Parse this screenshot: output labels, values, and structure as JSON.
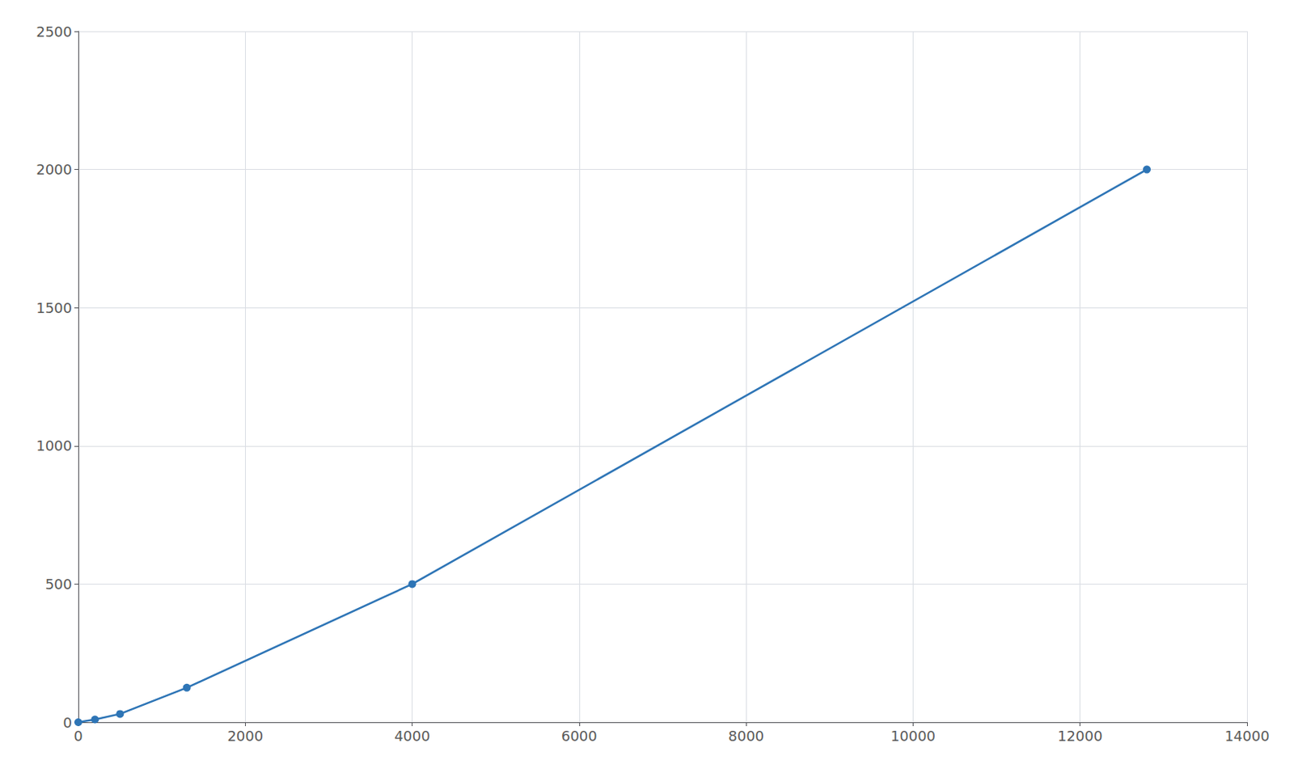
{
  "chart_data": {
    "type": "line",
    "x": [
      0,
      200,
      500,
      1300,
      4000,
      12800
    ],
    "values": [
      0,
      10,
      30,
      125,
      500,
      2000
    ],
    "color": "#2E75B6",
    "marker": "circle",
    "xlim": [
      0,
      14000
    ],
    "ylim": [
      0,
      2500
    ],
    "xticks": [
      0,
      2000,
      4000,
      6000,
      8000,
      10000,
      12000,
      14000
    ],
    "yticks": [
      0,
      500,
      1000,
      1500,
      2000,
      2500
    ],
    "grid": true
  }
}
